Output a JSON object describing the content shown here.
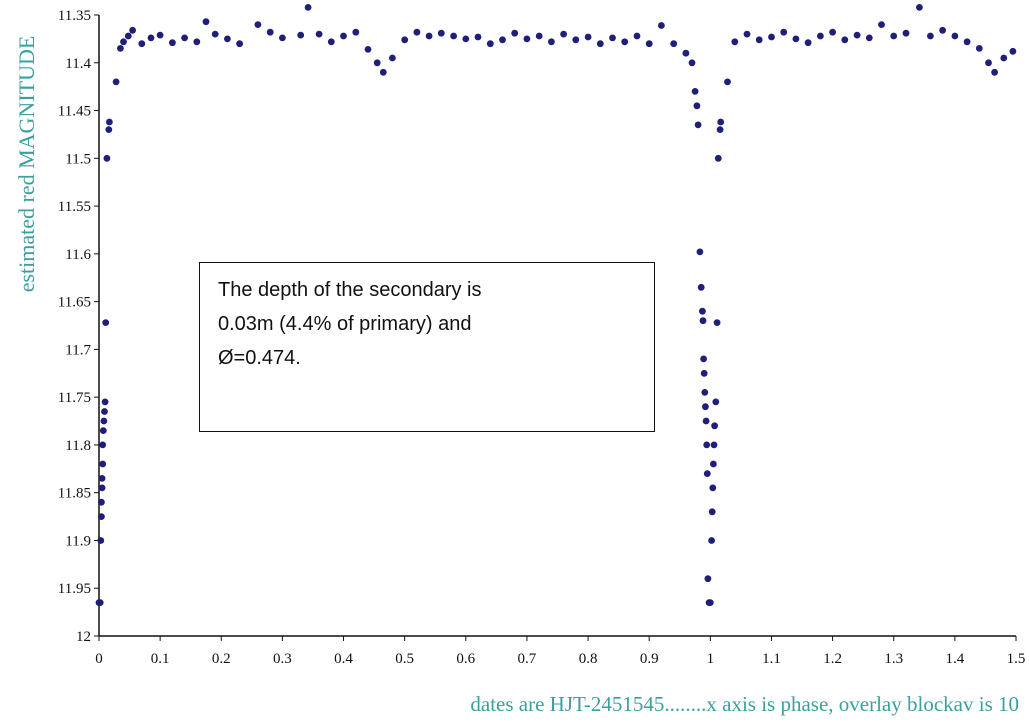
{
  "chart_data": {
    "type": "scatter",
    "title": "",
    "xlabel": "dates are HJT-2451545........x axis is phase, overlay blockav is 10",
    "ylabel": "estimated red MAGNITUDE",
    "xlim": [
      0,
      1.5
    ],
    "ylim": [
      11.35,
      12
    ],
    "y_inverted": true,
    "grid": false,
    "legend": "none",
    "x_ticks": [
      "0",
      "0.1",
      "0.2",
      "0.3",
      "0.4",
      "0.5",
      "0.6",
      "0.7",
      "0.8",
      "0.9",
      "1",
      "1.1",
      "1.2",
      "1.3",
      "1.4",
      "1.5"
    ],
    "y_ticks": [
      "11.35",
      "11.4",
      "11.45",
      "11.5",
      "11.55",
      "11.6",
      "11.65",
      "11.7",
      "11.75",
      "11.8",
      "11.85",
      "11.9",
      "11.95",
      "12"
    ],
    "color": "#1f1f7a",
    "series": [
      {
        "name": "",
        "points": [
          [
            0.0,
            11.965
          ],
          [
            0.002,
            11.965
          ],
          [
            0.003,
            11.9
          ],
          [
            0.004,
            11.875
          ],
          [
            0.004,
            11.86
          ],
          [
            0.005,
            11.845
          ],
          [
            0.005,
            11.835
          ],
          [
            0.006,
            11.82
          ],
          [
            0.006,
            11.8
          ],
          [
            0.007,
            11.785
          ],
          [
            0.008,
            11.775
          ],
          [
            0.009,
            11.765
          ],
          [
            0.01,
            11.755
          ],
          [
            0.011,
            11.672
          ],
          [
            0.013,
            11.5
          ],
          [
            0.016,
            11.47
          ],
          [
            0.017,
            11.462
          ],
          [
            0.028,
            11.42
          ],
          [
            0.035,
            11.385
          ],
          [
            0.04,
            11.378
          ],
          [
            0.048,
            11.372
          ],
          [
            0.055,
            11.366
          ],
          [
            0.07,
            11.38
          ],
          [
            0.085,
            11.374
          ],
          [
            0.1,
            11.371
          ],
          [
            0.12,
            11.379
          ],
          [
            0.14,
            11.374
          ],
          [
            0.16,
            11.378
          ],
          [
            0.175,
            11.357
          ],
          [
            0.19,
            11.37
          ],
          [
            0.21,
            11.375
          ],
          [
            0.23,
            11.38
          ],
          [
            0.26,
            11.36
          ],
          [
            0.28,
            11.368
          ],
          [
            0.3,
            11.374
          ],
          [
            0.33,
            11.371
          ],
          [
            0.342,
            11.342
          ],
          [
            0.36,
            11.37
          ],
          [
            0.38,
            11.378
          ],
          [
            0.4,
            11.372
          ],
          [
            0.42,
            11.368
          ],
          [
            0.44,
            11.386
          ],
          [
            0.455,
            11.4
          ],
          [
            0.465,
            11.41
          ],
          [
            0.48,
            11.395
          ],
          [
            0.5,
            11.376
          ],
          [
            0.52,
            11.368
          ],
          [
            0.54,
            11.372
          ],
          [
            0.56,
            11.369
          ],
          [
            0.58,
            11.372
          ],
          [
            0.6,
            11.375
          ],
          [
            0.62,
            11.373
          ],
          [
            0.64,
            11.38
          ],
          [
            0.66,
            11.376
          ],
          [
            0.68,
            11.369
          ],
          [
            0.7,
            11.375
          ],
          [
            0.72,
            11.372
          ],
          [
            0.74,
            11.378
          ],
          [
            0.76,
            11.37
          ],
          [
            0.78,
            11.376
          ],
          [
            0.8,
            11.373
          ],
          [
            0.82,
            11.38
          ],
          [
            0.84,
            11.374
          ],
          [
            0.86,
            11.378
          ],
          [
            0.88,
            11.372
          ],
          [
            0.9,
            11.38
          ],
          [
            0.92,
            11.361
          ],
          [
            0.94,
            11.38
          ],
          [
            0.96,
            11.39
          ],
          [
            0.97,
            11.4
          ],
          [
            0.975,
            11.43
          ],
          [
            0.978,
            11.445
          ],
          [
            0.98,
            11.465
          ],
          [
            0.983,
            11.598
          ],
          [
            0.985,
            11.635
          ],
          [
            0.987,
            11.66
          ],
          [
            0.988,
            11.67
          ],
          [
            0.989,
            11.71
          ],
          [
            0.99,
            11.725
          ],
          [
            0.991,
            11.745
          ],
          [
            0.992,
            11.76
          ],
          [
            0.993,
            11.775
          ],
          [
            0.994,
            11.8
          ],
          [
            0.995,
            11.83
          ],
          [
            0.996,
            11.94
          ],
          [
            0.998,
            11.965
          ],
          [
            1.0,
            11.965
          ],
          [
            1.002,
            11.9
          ],
          [
            1.003,
            11.87
          ],
          [
            1.004,
            11.845
          ],
          [
            1.005,
            11.82
          ],
          [
            1.006,
            11.8
          ],
          [
            1.007,
            11.78
          ],
          [
            1.009,
            11.755
          ],
          [
            1.011,
            11.672
          ],
          [
            1.013,
            11.5
          ],
          [
            1.016,
            11.47
          ],
          [
            1.017,
            11.462
          ],
          [
            1.028,
            11.42
          ],
          [
            1.04,
            11.378
          ],
          [
            1.06,
            11.37
          ],
          [
            1.08,
            11.376
          ],
          [
            1.1,
            11.373
          ],
          [
            1.12,
            11.368
          ],
          [
            1.14,
            11.375
          ],
          [
            1.16,
            11.379
          ],
          [
            1.18,
            11.372
          ],
          [
            1.2,
            11.368
          ],
          [
            1.22,
            11.376
          ],
          [
            1.24,
            11.371
          ],
          [
            1.26,
            11.374
          ],
          [
            1.28,
            11.36
          ],
          [
            1.3,
            11.372
          ],
          [
            1.32,
            11.369
          ],
          [
            1.342,
            11.342
          ],
          [
            1.36,
            11.372
          ],
          [
            1.38,
            11.366
          ],
          [
            1.4,
            11.372
          ],
          [
            1.42,
            11.378
          ],
          [
            1.44,
            11.385
          ],
          [
            1.455,
            11.4
          ],
          [
            1.465,
            11.41
          ],
          [
            1.48,
            11.395
          ],
          [
            1.495,
            11.388
          ]
        ]
      }
    ]
  },
  "annotation": {
    "lines": [
      "The depth of the secondary is",
      "0.03m (4.4% of primary) and",
      "Ø=0.474."
    ]
  }
}
